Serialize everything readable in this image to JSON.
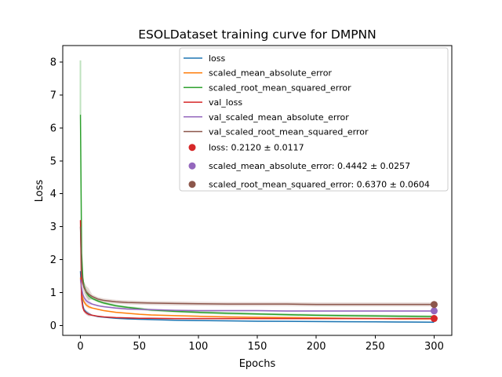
{
  "chart_data": {
    "type": "line",
    "title": "ESOLDataset training curve for DMPNN",
    "xlabel": "Epochs",
    "ylabel": "Loss",
    "xlim": [
      -15,
      315
    ],
    "ylim": [
      -0.3,
      8.5
    ],
    "xticks": [
      0,
      50,
      100,
      150,
      200,
      250,
      300
    ],
    "yticks": [
      0,
      1,
      2,
      3,
      4,
      5,
      6,
      7,
      8
    ],
    "grid": false,
    "legend_position": "top-right",
    "series": [
      {
        "name": "loss",
        "color": "#1f77b4",
        "band": 0.02,
        "x": [
          0,
          1,
          2,
          3,
          5,
          7,
          10,
          15,
          20,
          30,
          40,
          50,
          60,
          80,
          100,
          125,
          150,
          175,
          200,
          225,
          250,
          275,
          300
        ],
        "y": [
          1.65,
          0.9,
          0.62,
          0.48,
          0.4,
          0.35,
          0.31,
          0.27,
          0.25,
          0.22,
          0.2,
          0.19,
          0.18,
          0.16,
          0.15,
          0.14,
          0.13,
          0.125,
          0.12,
          0.115,
          0.11,
          0.105,
          0.1
        ]
      },
      {
        "name": "scaled_mean_absolute_error",
        "color": "#ff7f0e",
        "band": 0.02,
        "x": [
          0,
          1,
          2,
          3,
          5,
          7,
          10,
          15,
          20,
          30,
          40,
          50,
          60,
          80,
          100,
          125,
          150,
          175,
          200,
          225,
          250,
          275,
          300
        ],
        "y": [
          1.45,
          1.0,
          0.82,
          0.72,
          0.62,
          0.57,
          0.53,
          0.49,
          0.45,
          0.4,
          0.37,
          0.34,
          0.32,
          0.3,
          0.28,
          0.26,
          0.25,
          0.24,
          0.23,
          0.22,
          0.21,
          0.2,
          0.2
        ]
      },
      {
        "name": "scaled_root_mean_squared_error",
        "color": "#2ca02c",
        "band": 0.04,
        "x": [
          0,
          1,
          2,
          3,
          5,
          7,
          10,
          15,
          20,
          30,
          40,
          50,
          60,
          80,
          100,
          125,
          150,
          175,
          200,
          225,
          250,
          275,
          300
        ],
        "y": [
          6.4,
          2.2,
          1.45,
          1.2,
          1.0,
          0.9,
          0.82,
          0.74,
          0.68,
          0.6,
          0.55,
          0.51,
          0.47,
          0.43,
          0.4,
          0.37,
          0.35,
          0.33,
          0.31,
          0.3,
          0.29,
          0.28,
          0.27
        ]
      },
      {
        "name": "val_loss",
        "color": "#d62728",
        "band": 0.02,
        "x": [
          0,
          1,
          2,
          3,
          5,
          7,
          10,
          15,
          20,
          30,
          40,
          50,
          60,
          80,
          100,
          125,
          150,
          175,
          200,
          225,
          250,
          275,
          300
        ],
        "y": [
          3.2,
          0.8,
          0.55,
          0.45,
          0.38,
          0.34,
          0.31,
          0.28,
          0.26,
          0.24,
          0.23,
          0.22,
          0.22,
          0.21,
          0.21,
          0.21,
          0.21,
          0.21,
          0.21,
          0.21,
          0.21,
          0.21,
          0.21
        ]
      },
      {
        "name": "val_scaled_mean_absolute_error",
        "color": "#9467bd",
        "band": 0.025,
        "x": [
          0,
          1,
          2,
          3,
          5,
          7,
          10,
          15,
          20,
          30,
          40,
          50,
          60,
          80,
          100,
          125,
          150,
          175,
          200,
          225,
          250,
          275,
          300
        ],
        "y": [
          1.4,
          1.15,
          0.95,
          0.85,
          0.75,
          0.7,
          0.65,
          0.6,
          0.57,
          0.53,
          0.5,
          0.49,
          0.48,
          0.46,
          0.45,
          0.45,
          0.45,
          0.44,
          0.44,
          0.44,
          0.44,
          0.44,
          0.44
        ]
      },
      {
        "name": "val_scaled_root_mean_squared_error",
        "color": "#8c564b",
        "band": 0.06,
        "x": [
          0,
          1,
          2,
          3,
          5,
          7,
          10,
          15,
          20,
          30,
          40,
          50,
          60,
          80,
          100,
          125,
          150,
          175,
          200,
          225,
          250,
          275,
          300
        ],
        "y": [
          3.0,
          1.6,
          1.3,
          1.15,
          1.02,
          0.95,
          0.88,
          0.8,
          0.76,
          0.72,
          0.7,
          0.69,
          0.68,
          0.67,
          0.66,
          0.65,
          0.65,
          0.65,
          0.64,
          0.64,
          0.64,
          0.64,
          0.64
        ]
      }
    ],
    "spike": {
      "series": "scaled_root_mean_squared_error",
      "x": 0,
      "y_max": 8.05
    },
    "final_markers": [
      {
        "label": "loss: 0.2120 ± 0.0117",
        "color": "#d62728",
        "x": 300,
        "y": 0.212
      },
      {
        "label": "scaled_mean_absolute_error: 0.4442 ± 0.0257",
        "color": "#9467bd",
        "x": 300,
        "y": 0.4442
      },
      {
        "label": "scaled_root_mean_squared_error: 0.6370 ± 0.0604",
        "color": "#8c564b",
        "x": 300,
        "y": 0.637
      }
    ]
  }
}
